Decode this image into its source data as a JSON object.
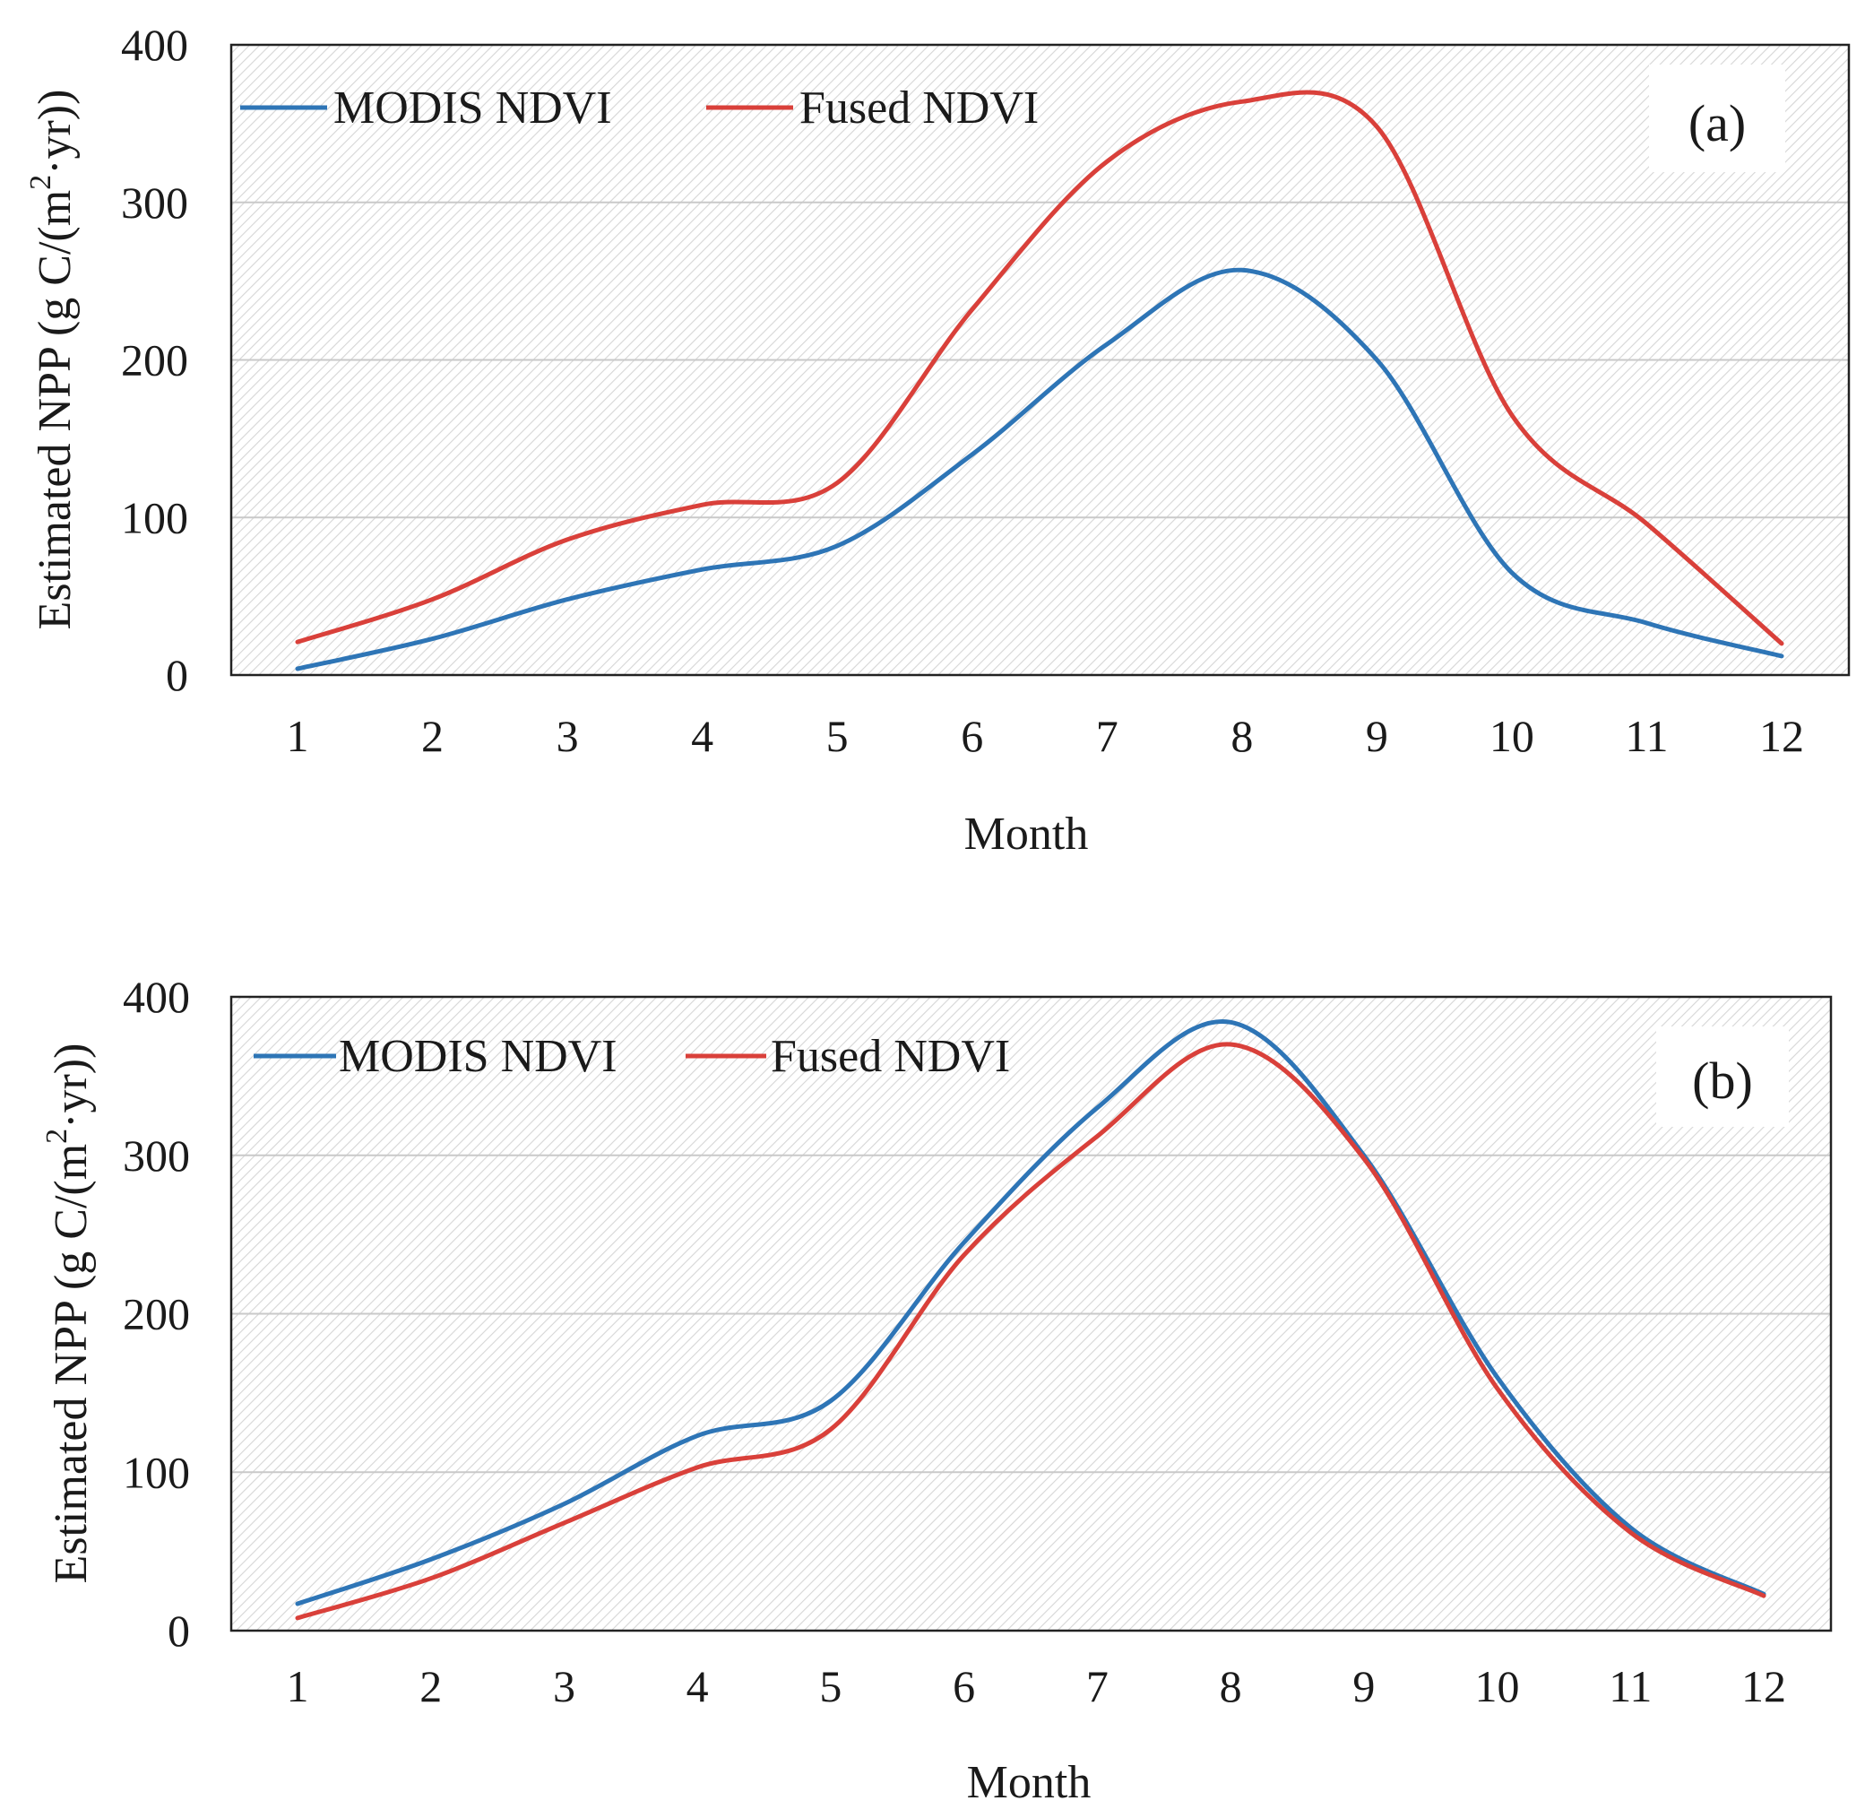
{
  "chart_data": [
    {
      "type": "line",
      "panel_label": "(a)",
      "categories": [
        "1",
        "2",
        "3",
        "4",
        "5",
        "6",
        "7",
        "8",
        "9",
        "10",
        "11",
        "12"
      ],
      "series": [
        {
          "name": "MODIS NDVI",
          "color": "#2e75b6",
          "values": [
            4,
            23,
            48,
            67,
            82,
            140,
            210,
            257,
            200,
            65,
            33,
            12
          ]
        },
        {
          "name": "Fused NDVI",
          "color": "#d9403a",
          "values": [
            21,
            48,
            86,
            108,
            122,
            232,
            326,
            364,
            348,
            165,
            96,
            20
          ]
        }
      ],
      "xlabel": "Month",
      "ylabel": "Estimated NPP (g C/(m²·yr))",
      "ylabel_parts": {
        "pre": "Estimated NPP (g C/(m",
        "sup": "2",
        "post": "·yr))"
      },
      "ylim": [
        0,
        400
      ],
      "yticks": [
        "0",
        "100",
        "200",
        "300",
        "400"
      ],
      "grid": true,
      "legend_position": "top-left"
    },
    {
      "type": "line",
      "panel_label": "(b)",
      "categories": [
        "1",
        "2",
        "3",
        "4",
        "5",
        "6",
        "7",
        "8",
        "9",
        "10",
        "11",
        "12"
      ],
      "series": [
        {
          "name": "MODIS NDVI",
          "color": "#2e75b6",
          "values": [
            17,
            45,
            80,
            123,
            145,
            245,
            330,
            384,
            300,
            160,
            65,
            23
          ]
        },
        {
          "name": "Fused NDVI",
          "color": "#d9403a",
          "values": [
            8,
            33,
            68,
            103,
            127,
            237,
            312,
            370,
            298,
            153,
            62,
            22
          ]
        }
      ],
      "xlabel": "Month",
      "ylabel": "Estimated NPP (g C/(m²·yr))",
      "ylabel_parts": {
        "pre": "Estimated NPP (g C/(m",
        "sup": "2",
        "post": "·yr))"
      },
      "ylim": [
        0,
        400
      ],
      "yticks": [
        "0",
        "100",
        "200",
        "300",
        "400"
      ],
      "grid": true,
      "legend_position": "top-left"
    }
  ]
}
